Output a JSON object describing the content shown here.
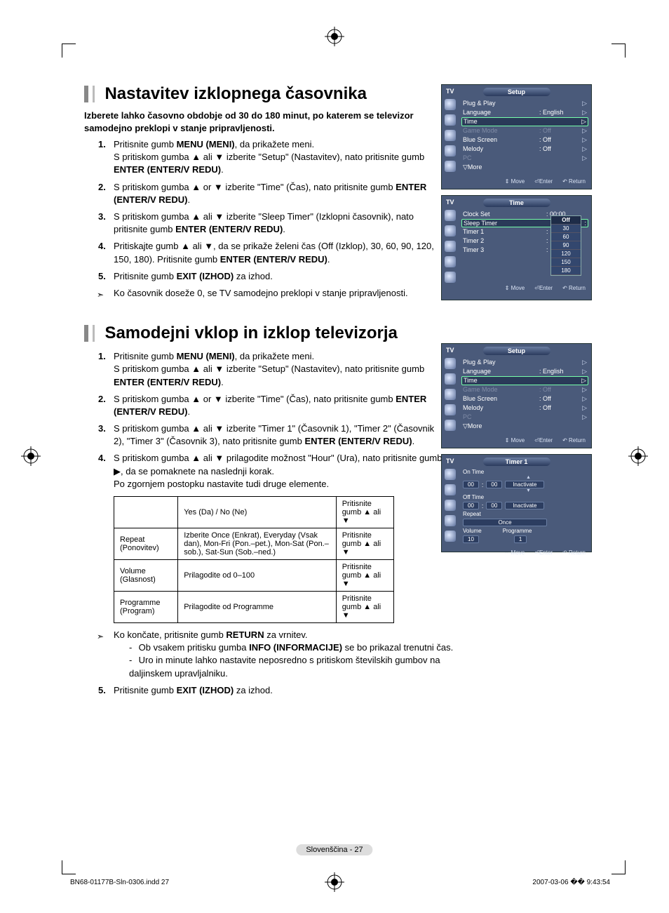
{
  "section1": {
    "title": "Nastavitev izklopnega časovnika",
    "intro": "Izberete lahko časovno obdobje od 30 do 180 minut, po katerem se televizor samodejno preklopi v stanje pripravljenosti.",
    "steps": [
      "Pritisnite gumb <b>MENU (MENI)</b>, da prikažete meni.<br>S pritiskom gumba ▲ ali ▼ izberite \"Setup\" (Nastavitev), nato pritisnite gumb <b>ENTER (ENTER/V REDU)</b>.",
      "S pritiskom gumba ▲ or ▼ izberite \"Time\" (Čas), nato pritisnite gumb <b>ENTER (ENTER/V REDU)</b>.",
      "S pritiskom gumba ▲ ali ▼ izberite \"Sleep Timer\" (Izklopni časovnik), nato pritisnite gumb <b>ENTER (ENTER/V REDU)</b>.",
      "Pritiskajte gumb ▲ ali ▼, da se prikaže želeni čas (Off (Izklop), 30, 60, 90, 120, 150, 180). Pritisnite gumb <b>ENTER (ENTER/V REDU)</b>.",
      "Pritisnite gumb <b>EXIT (IZHOD)</b> za izhod."
    ],
    "note": "Ko časovnik doseže 0, se TV samodejno preklopi v stanje pripravljenosti."
  },
  "section2": {
    "title": "Samodejni vklop in izklop televizorja",
    "steps": [
      "Pritisnite gumb <b>MENU (MENI)</b>, da prikažete meni.<br>S pritiskom gumba ▲ ali ▼ izberite \"Setup\" (Nastavitev), nato pritisnite gumb <b>ENTER (ENTER/V REDU)</b>.",
      "S pritiskom gumba ▲ or ▼ izberite \"Time\" (Čas), nato pritisnite gumb <b>ENTER (ENTER/V REDU)</b>.",
      "S pritiskom gumba ▲ ali ▼ izberite \"Timer 1\" (Časovnik 1), \"Timer 2\" (Časovnik 2), \"Timer 3\" (Časovnik 3), nato pritisnite gumb <b>ENTER (ENTER/V REDU)</b>.",
      "S pritiskom gumba ▲ ali ▼ prilagodite možnost \"Hour\" (Ura), nato pritisnite gumb ▶, da se pomaknete na naslednji korak.<br>Po zgornjem postopku nastavite tudi druge elemente."
    ],
    "table": {
      "rows": [
        [
          "",
          "Yes (Da) / No (Ne)",
          "Pritisnite gumb ▲ ali ▼"
        ],
        [
          "Repeat (Ponovitev)",
          "Izberite Once (Enkrat), Everyday (Vsak dan), Mon-Fri (Pon.–pet.), Mon-Sat (Pon.–sob.), Sat-Sun (Sob.–ned.)",
          "Pritisnite gumb ▲ ali ▼"
        ],
        [
          "Volume (Glasnost)",
          "Prilagodite od 0–100",
          "Pritisnite gumb ▲ ali ▼"
        ],
        [
          "Programme (Program)",
          "Prilagodite od Programme",
          "Pritisnite gumb ▲ ali ▼"
        ]
      ]
    },
    "note": "Ko končate, pritisnite gumb <b>RETURN</b> za vrnitev.",
    "sub_notes": [
      "Ob vsakem pritisku gumba <b>INFO (INFORMACIJE)</b> se bo prikazal trenutni čas.",
      "Uro in minute lahko nastavite neposredno s pritiskom številskih gumbov na daljinskem upravljalniku."
    ],
    "step5": "Pritisnite gumb <b>EXIT (IZHOD)</b> za izhod."
  },
  "osd_setup": {
    "tv": "TV",
    "title": "Setup",
    "items": [
      {
        "k": "Plug & Play",
        "v": "",
        "tri": true
      },
      {
        "k": "Language",
        "v": ": English",
        "tri": true
      }
    ],
    "hl": {
      "k": "Time",
      "tri": true
    },
    "items2": [
      {
        "k": "Game Mode",
        "v": ": Off",
        "dim": true,
        "tri": true
      },
      {
        "k": "Blue Screen",
        "v": ": Off",
        "tri": true
      },
      {
        "k": "Melody",
        "v": ": Off",
        "tri": true
      },
      {
        "k": "PC",
        "v": "",
        "dim": true,
        "tri": true
      },
      {
        "k": "▽More",
        "v": "",
        "tri": false
      }
    ],
    "footer": [
      "⇕ Move",
      "⏎Enter",
      "↶ Return"
    ]
  },
  "osd_time": {
    "tv": "TV",
    "title": "Time",
    "items": [
      {
        "k": "Clock Set",
        "v": ": 00:00"
      }
    ],
    "hl": {
      "k": "Sleep Timer",
      "v": ":"
    },
    "items2": [
      {
        "k": "Timer 1",
        "v": ":"
      },
      {
        "k": "Timer 2",
        "v": ":"
      },
      {
        "k": "Timer 3",
        "v": ":"
      }
    ],
    "dropdown": [
      "Off",
      "30",
      "60",
      "90",
      "120",
      "150",
      "180"
    ],
    "footer": [
      "⇕ Move",
      "⏎Enter",
      "↶ Return"
    ]
  },
  "osd_timer1": {
    "tv": "TV",
    "title": "Timer 1",
    "on_time": "On Time",
    "off_time": "Off Time",
    "hh": "00",
    "mm": "00",
    "inact": "Inactivate",
    "repeat": "Repeat",
    "once": "Once",
    "volume": "Volume",
    "vol_val": "10",
    "programme": "Programme",
    "prog_val": "1",
    "footer": [
      "⇔ Move",
      "⏎Enter",
      "↶ Return"
    ]
  },
  "page_num": "Slovenščina - 27",
  "doc_footer_left": "BN68-01177B-Sln-0306.indd   27",
  "doc_footer_right": "2007-03-06   �� 9:43:54"
}
